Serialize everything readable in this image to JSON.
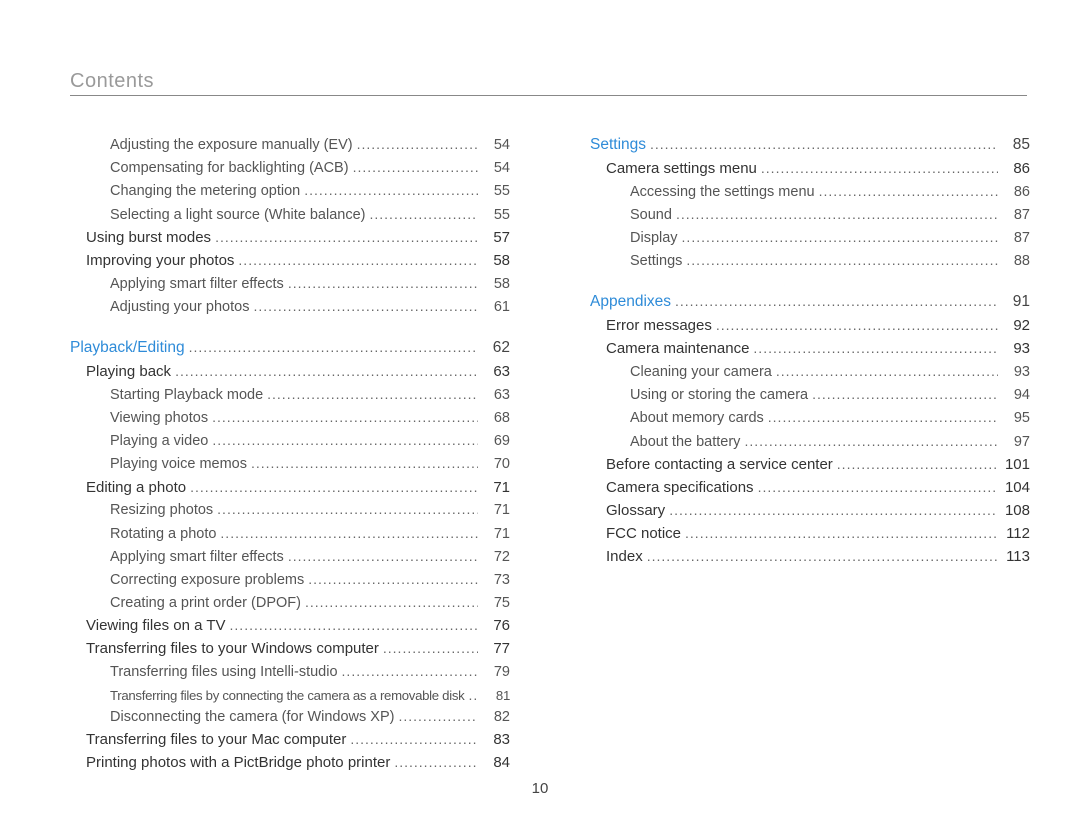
{
  "header": {
    "title": "Contents"
  },
  "pageNumber": "10",
  "columns": {
    "left": [
      {
        "level": 3,
        "label": "Adjusting the exposure manually (EV)",
        "page": "54"
      },
      {
        "level": 3,
        "label": "Compensating for backlighting (ACB)",
        "page": "54"
      },
      {
        "level": 3,
        "label": "Changing the metering option",
        "page": "55"
      },
      {
        "level": 3,
        "label": "Selecting a light source (White balance)",
        "page": "55"
      },
      {
        "level": 2,
        "label": "Using burst modes",
        "page": "57"
      },
      {
        "level": 2,
        "label": "Improving your photos",
        "page": "58"
      },
      {
        "level": 3,
        "label": "Applying smart filter effects",
        "page": "58"
      },
      {
        "level": 3,
        "label": "Adjusting your photos",
        "page": "61"
      },
      {
        "spacer": true
      },
      {
        "level": 1,
        "section": true,
        "label": "Playback/Editing",
        "page": "62"
      },
      {
        "level": 2,
        "label": "Playing back",
        "page": "63"
      },
      {
        "level": 3,
        "label": "Starting Playback mode",
        "page": "63"
      },
      {
        "level": 3,
        "label": "Viewing photos",
        "page": "68"
      },
      {
        "level": 3,
        "label": "Playing a video",
        "page": "69"
      },
      {
        "level": 3,
        "label": "Playing voice memos",
        "page": "70"
      },
      {
        "level": 2,
        "label": "Editing a photo",
        "page": "71"
      },
      {
        "level": 3,
        "label": "Resizing photos",
        "page": "71"
      },
      {
        "level": 3,
        "label": "Rotating a photo",
        "page": "71"
      },
      {
        "level": 3,
        "label": "Applying smart filter effects",
        "page": "72"
      },
      {
        "level": 3,
        "label": "Correcting exposure problems",
        "page": "73"
      },
      {
        "level": 3,
        "label": "Creating a print order (DPOF)",
        "page": "75"
      },
      {
        "level": 2,
        "label": "Viewing files on a TV",
        "page": "76"
      },
      {
        "level": 2,
        "label": "Transferring files to your Windows computer",
        "page": "77"
      },
      {
        "level": 3,
        "label": "Transferring files using Intelli-studio",
        "page": "79"
      },
      {
        "level": 3,
        "tight": true,
        "label": "Transferring files by connecting the camera as a removable disk",
        "page": "81"
      },
      {
        "level": 3,
        "label": "Disconnecting the camera (for Windows XP)",
        "page": "82"
      },
      {
        "level": 2,
        "label": "Transferring files to your Mac computer",
        "page": "83"
      },
      {
        "level": 2,
        "label": "Printing photos with a PictBridge photo printer",
        "page": "84"
      }
    ],
    "right": [
      {
        "level": 1,
        "section": true,
        "label": "Settings",
        "page": "85"
      },
      {
        "level": 2,
        "label": "Camera settings menu",
        "page": "86"
      },
      {
        "level": 3,
        "label": "Accessing the settings menu",
        "page": "86"
      },
      {
        "level": 3,
        "label": "Sound",
        "page": "87"
      },
      {
        "level": 3,
        "label": "Display",
        "page": "87"
      },
      {
        "level": 3,
        "label": "Settings",
        "page": "88"
      },
      {
        "spacer": true
      },
      {
        "level": 1,
        "section": true,
        "label": "Appendixes",
        "page": "91"
      },
      {
        "level": 2,
        "label": "Error messages",
        "page": "92"
      },
      {
        "level": 2,
        "label": "Camera maintenance",
        "page": "93"
      },
      {
        "level": 3,
        "label": "Cleaning your camera",
        "page": "93"
      },
      {
        "level": 3,
        "label": "Using or storing the camera",
        "page": "94"
      },
      {
        "level": 3,
        "label": "About memory cards",
        "page": "95"
      },
      {
        "level": 3,
        "label": "About the battery",
        "page": "97"
      },
      {
        "level": 2,
        "label": "Before contacting a service center",
        "page": "101"
      },
      {
        "level": 2,
        "label": "Camera specifications",
        "page": "104"
      },
      {
        "level": 2,
        "label": "Glossary",
        "page": "108"
      },
      {
        "level": 2,
        "label": "FCC notice",
        "page": "112"
      },
      {
        "level": 2,
        "label": "Index",
        "page": "113"
      }
    ]
  }
}
